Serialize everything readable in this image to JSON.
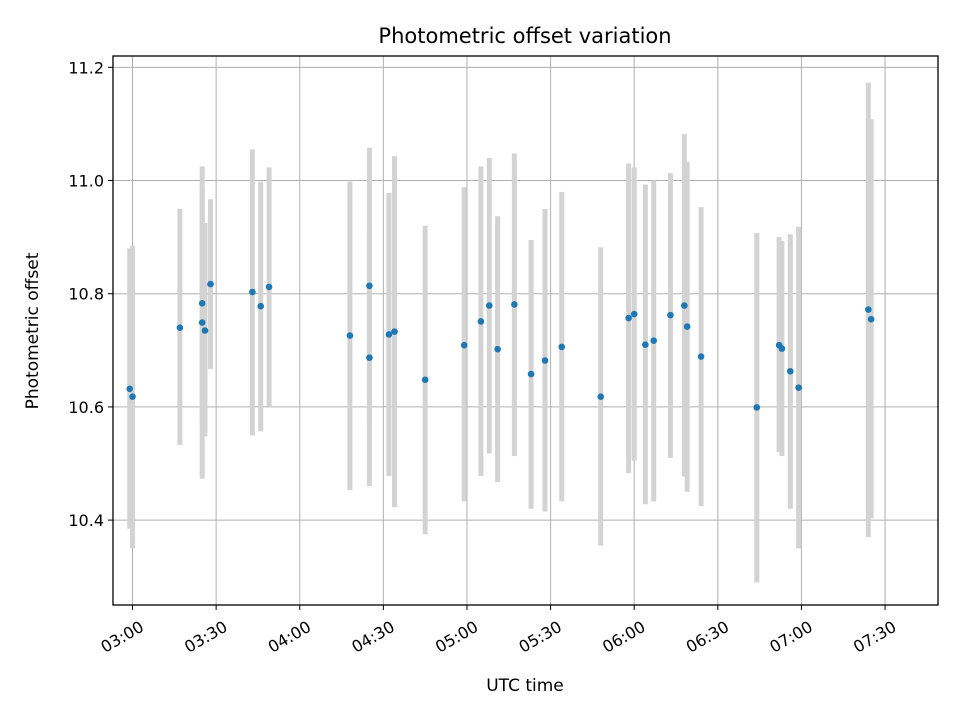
{
  "chart_data": {
    "type": "scatter",
    "title": "Photometric offset variation",
    "xlabel": "UTC time",
    "ylabel": "Photometric offset",
    "x_ticks": [
      "03:00",
      "03:30",
      "04:00",
      "04:30",
      "05:00",
      "05:30",
      "06:00",
      "06:30",
      "07:00",
      "07:30"
    ],
    "y_ticks": [
      "10.4",
      "10.6",
      "10.8",
      "11.0",
      "11.2"
    ],
    "xlim": [
      "02:53",
      "07:49"
    ],
    "ylim": [
      10.25,
      11.22
    ],
    "grid": true,
    "colors": {
      "point": "#1f77b4",
      "errorbar": "#d3d3d3"
    },
    "series": [
      {
        "points": [
          {
            "t": "02:59",
            "y": 10.632,
            "lo": 10.385,
            "hi": 10.88
          },
          {
            "t": "03:00",
            "y": 10.618,
            "lo": 10.35,
            "hi": 10.885
          },
          {
            "t": "03:17",
            "y": 10.74,
            "lo": 10.533,
            "hi": 10.95
          },
          {
            "t": "03:25",
            "y": 10.749,
            "lo": 10.473,
            "hi": 11.025
          },
          {
            "t": "03:25",
            "y": 10.783,
            "lo": 10.58,
            "hi": 10.985
          },
          {
            "t": "03:26",
            "y": 10.735,
            "lo": 10.548,
            "hi": 10.925
          },
          {
            "t": "03:28",
            "y": 10.817,
            "lo": 10.667,
            "hi": 10.967
          },
          {
            "t": "03:43",
            "y": 10.803,
            "lo": 10.55,
            "hi": 11.055
          },
          {
            "t": "03:46",
            "y": 10.778,
            "lo": 10.557,
            "hi": 10.998
          },
          {
            "t": "03:49",
            "y": 10.812,
            "lo": 10.6,
            "hi": 11.023
          },
          {
            "t": "04:18",
            "y": 10.726,
            "lo": 10.453,
            "hi": 10.998
          },
          {
            "t": "04:25",
            "y": 10.687,
            "lo": 10.46,
            "hi": 10.913
          },
          {
            "t": "04:25",
            "y": 10.814,
            "lo": 10.57,
            "hi": 11.058
          },
          {
            "t": "04:32",
            "y": 10.728,
            "lo": 10.478,
            "hi": 10.978
          },
          {
            "t": "04:34",
            "y": 10.733,
            "lo": 10.423,
            "hi": 11.043
          },
          {
            "t": "04:45",
            "y": 10.648,
            "lo": 10.375,
            "hi": 10.92
          },
          {
            "t": "04:59",
            "y": 10.709,
            "lo": 10.433,
            "hi": 10.988
          },
          {
            "t": "05:05",
            "y": 10.751,
            "lo": 10.478,
            "hi": 11.025
          },
          {
            "t": "05:08",
            "y": 10.779,
            "lo": 10.518,
            "hi": 11.04
          },
          {
            "t": "05:11",
            "y": 10.702,
            "lo": 10.467,
            "hi": 10.937
          },
          {
            "t": "05:17",
            "y": 10.781,
            "lo": 10.513,
            "hi": 11.048
          },
          {
            "t": "05:23",
            "y": 10.658,
            "lo": 10.42,
            "hi": 10.895
          },
          {
            "t": "05:28",
            "y": 10.682,
            "lo": 10.415,
            "hi": 10.95
          },
          {
            "t": "05:34",
            "y": 10.706,
            "lo": 10.433,
            "hi": 10.98
          },
          {
            "t": "05:48",
            "y": 10.618,
            "lo": 10.355,
            "hi": 10.882
          },
          {
            "t": "05:58",
            "y": 10.757,
            "lo": 10.483,
            "hi": 11.03
          },
          {
            "t": "06:00",
            "y": 10.764,
            "lo": 10.505,
            "hi": 11.023
          },
          {
            "t": "06:04",
            "y": 10.71,
            "lo": 10.428,
            "hi": 10.993
          },
          {
            "t": "06:07",
            "y": 10.717,
            "lo": 10.433,
            "hi": 11.0
          },
          {
            "t": "06:13",
            "y": 10.762,
            "lo": 10.51,
            "hi": 11.013
          },
          {
            "t": "06:18",
            "y": 10.779,
            "lo": 10.477,
            "hi": 11.082
          },
          {
            "t": "06:19",
            "y": 10.742,
            "lo": 10.45,
            "hi": 11.033
          },
          {
            "t": "06:24",
            "y": 10.689,
            "lo": 10.425,
            "hi": 10.953
          },
          {
            "t": "06:44",
            "y": 10.599,
            "lo": 10.29,
            "hi": 10.907
          },
          {
            "t": "06:52",
            "y": 10.709,
            "lo": 10.52,
            "hi": 10.9
          },
          {
            "t": "06:53",
            "y": 10.703,
            "lo": 10.513,
            "hi": 10.893
          },
          {
            "t": "06:56",
            "y": 10.663,
            "lo": 10.42,
            "hi": 10.905
          },
          {
            "t": "06:59",
            "y": 10.634,
            "lo": 10.35,
            "hi": 10.918
          },
          {
            "t": "07:24",
            "y": 10.772,
            "lo": 10.37,
            "hi": 11.173
          },
          {
            "t": "07:25",
            "y": 10.755,
            "lo": 10.403,
            "hi": 11.108
          }
        ]
      }
    ]
  }
}
